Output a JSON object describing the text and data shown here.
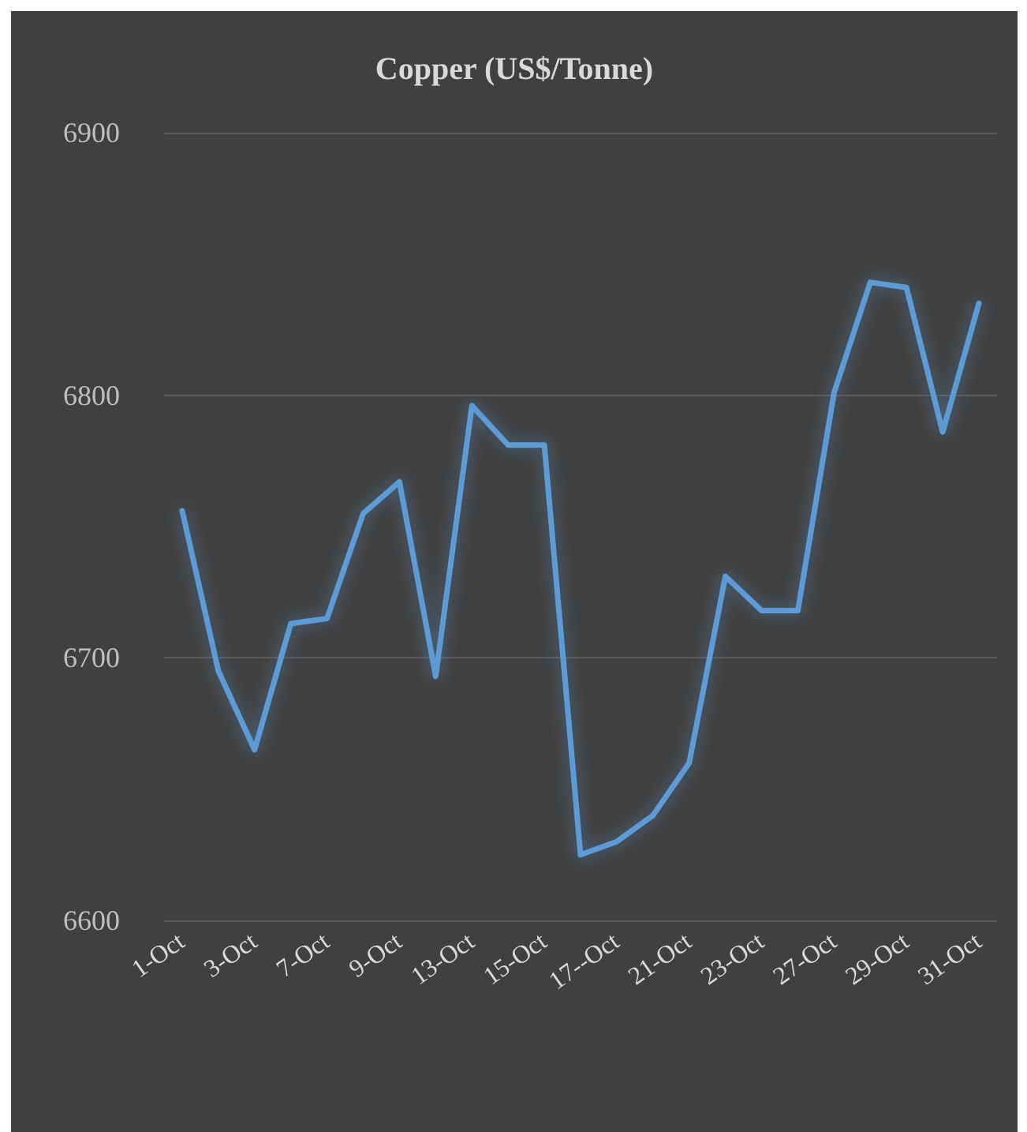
{
  "chart_data": {
    "type": "line",
    "title": "Copper (US$/Tonne)",
    "categories": [
      "1-Oct",
      null,
      "3-Oct",
      null,
      "7-Oct",
      null,
      "9-Oct",
      null,
      "13-Oct",
      null,
      "15-Oct",
      null,
      "17--Oct",
      null,
      "21-Oct",
      null,
      "23-Oct",
      null,
      "27-Oct",
      null,
      "29-Oct",
      null,
      "31-Oct"
    ],
    "series": [
      {
        "color": "#5b9bd5",
        "values": [
          6756,
          6695,
          6665,
          6713,
          6715,
          6755,
          6767,
          6693,
          6796,
          6781,
          6781,
          6625,
          6630,
          6640,
          6660,
          6731,
          6718,
          6718,
          6801,
          6843,
          6841,
          6786,
          6835
        ]
      }
    ],
    "ylim": [
      6600,
      6900
    ],
    "yticks": [
      6600,
      6700,
      6800,
      6900
    ],
    "grid": "y",
    "marker": "none",
    "line_style": "solid"
  }
}
